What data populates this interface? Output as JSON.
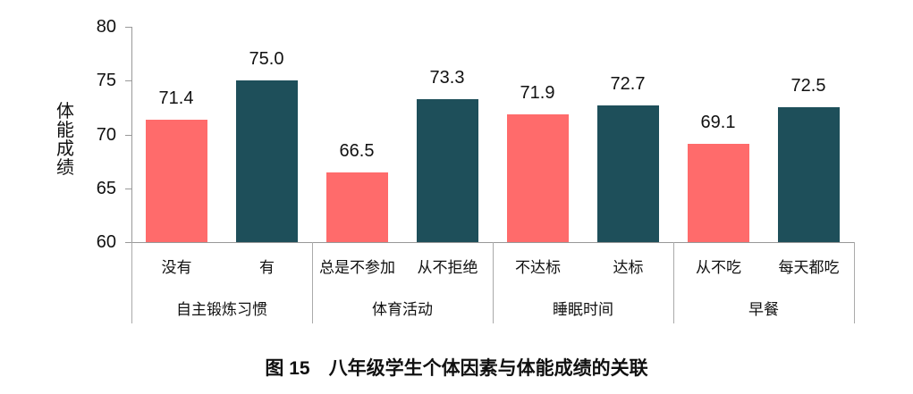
{
  "chart_data": {
    "type": "bar",
    "title": "图 15　八年级学生个体因素与体能成绩的关联",
    "xlabel": "",
    "ylabel": "体能成绩",
    "ylim": [
      60,
      80
    ],
    "yticks": [
      60,
      65,
      70,
      75,
      80
    ],
    "grid": false,
    "legend": null,
    "groups": [
      {
        "name": "自主锻炼习惯",
        "categories": [
          "没有",
          "有"
        ],
        "values": [
          71.4,
          75.0
        ]
      },
      {
        "name": "体育活动",
        "categories": [
          "总是不参加",
          "从不拒绝"
        ],
        "values": [
          66.5,
          73.3
        ]
      },
      {
        "name": "睡眠时间",
        "categories": [
          "不达标",
          "达标"
        ],
        "values": [
          71.9,
          72.7
        ]
      },
      {
        "name": "早餐",
        "categories": [
          "从不吃",
          "每天都吃"
        ],
        "values": [
          69.1,
          72.5
        ]
      }
    ],
    "categories": [
      "没有",
      "有",
      "总是不参加",
      "从不拒绝",
      "不达标",
      "达标",
      "从不吃",
      "每天都吃"
    ],
    "values": [
      71.4,
      75.0,
      66.5,
      73.3,
      71.9,
      72.7,
      69.1,
      72.5
    ],
    "value_labels": [
      "71.4",
      "75.0",
      "66.5",
      "73.3",
      "71.9",
      "72.7",
      "69.1",
      "72.5"
    ],
    "colors": {
      "negative": "#ff6b6b",
      "positive": "#1e4f5a"
    }
  },
  "caption": "图 15　八年级学生个体因素与体能成绩的关联",
  "yaxis": {
    "label": "体能成绩",
    "ticks": [
      "80",
      "75",
      "70",
      "65",
      "60"
    ]
  }
}
